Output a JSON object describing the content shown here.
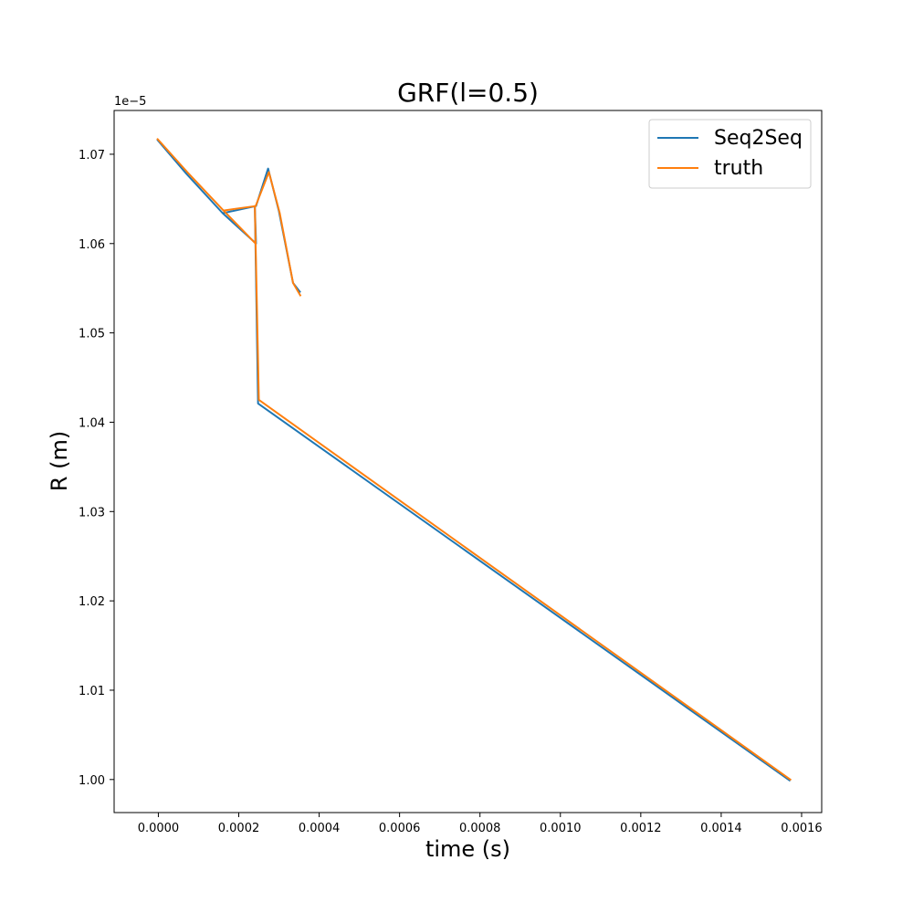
{
  "chart_data": {
    "type": "line",
    "title": "GRF(l=0.5)",
    "xlabel": "time (s)",
    "ylabel": "R (m)",
    "y_offset_label": "1e−5",
    "y_scale_factor": 1e-05,
    "xlim": [
      -0.00011,
      0.00165
    ],
    "ylim": [
      0.9963,
      1.0749
    ],
    "x_ticks": [
      0.0,
      0.0002,
      0.0004,
      0.0006,
      0.0008,
      0.001,
      0.0012,
      0.0014,
      0.0016
    ],
    "x_tick_labels": [
      "0.0000",
      "0.0002",
      "0.0004",
      "0.0006",
      "0.0008",
      "0.0010",
      "0.0012",
      "0.0014",
      "0.0016"
    ],
    "y_ticks": [
      1.0,
      1.01,
      1.02,
      1.03,
      1.04,
      1.05,
      1.06,
      1.07
    ],
    "y_tick_labels": [
      "1.00",
      "1.01",
      "1.02",
      "1.03",
      "1.04",
      "1.05",
      "1.06",
      "1.07"
    ],
    "grid": false,
    "legend_position": "top-right",
    "series": [
      {
        "name": "Seq2Seq",
        "color": "#1f77b4",
        "x": [
          0.000352,
          0.000335,
          0.0003,
          0.000273,
          0.000243,
          0.00016,
          7e-05,
          -2e-06,
          7e-05,
          0.00016,
          0.000243,
          0.00024,
          0.000248,
          0.00157
        ],
        "y": [
          1.0546,
          1.0556,
          1.0636,
          1.0684,
          1.0642,
          1.0634,
          1.0678,
          1.0716,
          1.0678,
          1.0634,
          1.06,
          1.0642,
          1.0421,
          0.9999
        ]
      },
      {
        "name": "truth",
        "color": "#ff7f0e",
        "x": [
          0.000353,
          0.000335,
          0.000302,
          0.000275,
          0.000242,
          0.000162,
          7.2e-05,
          -2e-06,
          7.2e-05,
          0.000162,
          0.000242,
          0.00024,
          0.00025,
          0.001572
        ],
        "y": [
          1.0542,
          1.0556,
          1.0634,
          1.068,
          1.0642,
          1.0637,
          1.068,
          1.0717,
          1.068,
          1.0637,
          1.06,
          1.0642,
          1.0425,
          1.0
        ]
      }
    ]
  }
}
